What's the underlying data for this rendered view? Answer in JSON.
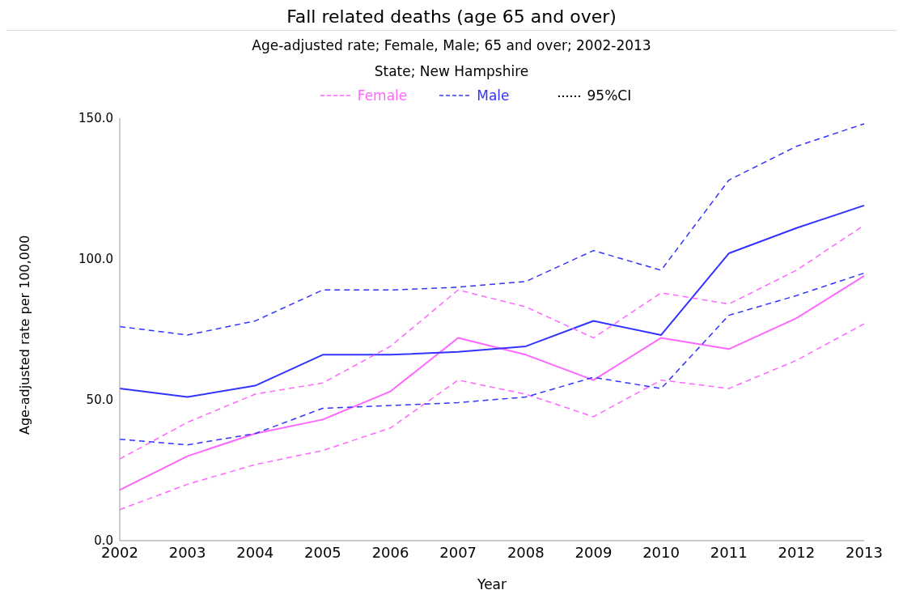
{
  "chart_data": {
    "type": "line",
    "title": "Fall related deaths (age 65 and over)",
    "subtitle": "Age-adjusted rate; Female, Male; 65 and over; 2002-2013\nState; New Hampshire",
    "xlabel": "Year",
    "ylabel": "Age-adjusted rate per 100,000",
    "categories": [
      "2002",
      "2003",
      "2004",
      "2005",
      "2006",
      "2007",
      "2008",
      "2009",
      "2010",
      "2011",
      "2012",
      "2013"
    ],
    "series": [
      {
        "name": "Female",
        "color": "#ff66ff",
        "line_style": "solid",
        "values": [
          18,
          30,
          38,
          43,
          53,
          72,
          66,
          57,
          72,
          68,
          79,
          94
        ]
      },
      {
        "name": "Male",
        "color": "#3333ff",
        "line_style": "solid",
        "values": [
          54,
          51,
          55,
          66,
          66,
          67,
          69,
          78,
          73,
          102,
          111,
          119
        ]
      },
      {
        "color": "#ff66ff",
        "line_style": "dashed",
        "values": [
          11,
          20,
          27,
          32,
          40,
          57,
          52,
          44,
          57,
          54,
          64,
          77
        ]
      },
      {
        "color": "#ff66ff",
        "line_style": "dashed",
        "values": [
          29,
          42,
          52,
          56,
          69,
          89,
          83,
          72,
          88,
          84,
          96,
          112
        ]
      },
      {
        "color": "#3333ff",
        "line_style": "dashed",
        "values": [
          36,
          34,
          38,
          47,
          48,
          49,
          51,
          58,
          54,
          80,
          87,
          95
        ]
      },
      {
        "color": "#3333ff",
        "line_style": "dashed",
        "values": [
          76,
          73,
          78,
          89,
          89,
          90,
          92,
          103,
          96,
          128,
          140,
          148
        ]
      }
    ],
    "annotations": [
      "95%CI"
    ],
    "legend": "top",
    "grid": false,
    "ylim": [
      0,
      150
    ],
    "yticks": [
      {
        "value": 0,
        "label": "0.0"
      },
      {
        "value": 50,
        "label": "50.0"
      },
      {
        "value": 100,
        "label": "100.0"
      },
      {
        "value": 150,
        "label": "150.0"
      }
    ]
  }
}
